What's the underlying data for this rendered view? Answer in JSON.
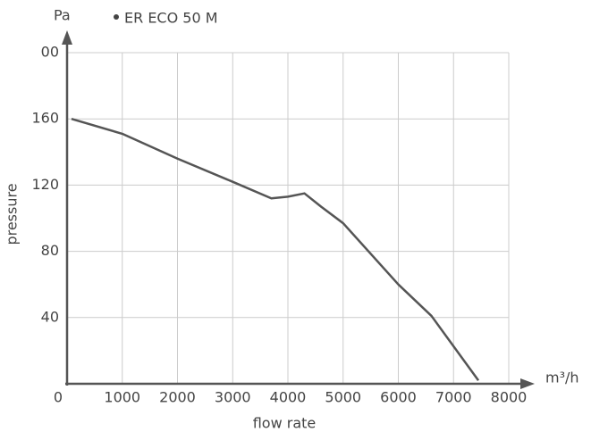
{
  "chart_data": {
    "type": "line",
    "y_unit": "Pa",
    "x_unit": "m³/h",
    "y_label": "pressure",
    "x_label": "flow rate",
    "x": [
      80,
      1000,
      2000,
      3000,
      3700,
      4000,
      4300,
      4600,
      5000,
      6000,
      6600,
      7450
    ],
    "series": [
      {
        "name": "ER ECO 50 M",
        "color": "#555555",
        "values": [
          160,
          151,
          136,
          122,
          112,
          113,
          115,
          107,
          97,
          60,
          41,
          2
        ]
      }
    ],
    "xlim": [
      0,
      8000
    ],
    "xticks": [
      0,
      1000,
      2000,
      3000,
      4000,
      5000,
      6000,
      7000,
      8000
    ],
    "ylim": [
      0,
      200
    ],
    "yticks": [
      40,
      80,
      120,
      160,
      {
        "value": 200,
        "label": "00"
      }
    ],
    "grid": true
  }
}
